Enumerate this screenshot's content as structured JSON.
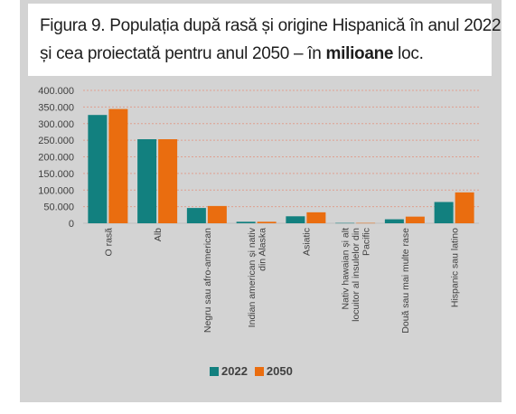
{
  "title": {
    "line1": "Figura 9. Populația după rasă și origine Hispanică în anul 2022",
    "line2_prefix": "și cea proiectată pentru anul 2050 – în ",
    "line2_emph": "milioane",
    "line2_suffix": " loc."
  },
  "colors": {
    "s2022": "#12807f",
    "s2050": "#ea6d0f",
    "grid": "#e0a090",
    "panel": "#d3d3d3"
  },
  "chart_data": {
    "type": "bar",
    "title": "Figura 9. Populația după rasă și origine Hispanică în anul 2022 și cea proiectată pentru anul 2050 – în milioane loc.",
    "categories": [
      [
        "O rasă"
      ],
      [
        "Alb"
      ],
      [
        "Negru sau afro-american"
      ],
      [
        "Indian american și nativ",
        "din Alaska"
      ],
      [
        "Asiatic"
      ],
      [
        "Nativ hawaian și alt",
        "locuitor al insulelor din",
        "Pacific"
      ],
      [
        "Două sau mai multe rase"
      ],
      [
        "Hispanic sau latino"
      ]
    ],
    "series": [
      {
        "name": "2022",
        "values": [
          326000,
          253000,
          46000,
          4500,
          21000,
          1000,
          12000,
          64000
        ]
      },
      {
        "name": "2050",
        "values": [
          344000,
          253000,
          52000,
          4500,
          33000,
          1000,
          20000,
          93000
        ]
      }
    ],
    "ylim": [
      0,
      400000
    ],
    "yticks": [
      "0",
      "50.000",
      "100.000",
      "150.000",
      "200.000",
      "250.000",
      "300.000",
      "350.000",
      "400.000"
    ],
    "grid": true,
    "legend": "bottom"
  }
}
